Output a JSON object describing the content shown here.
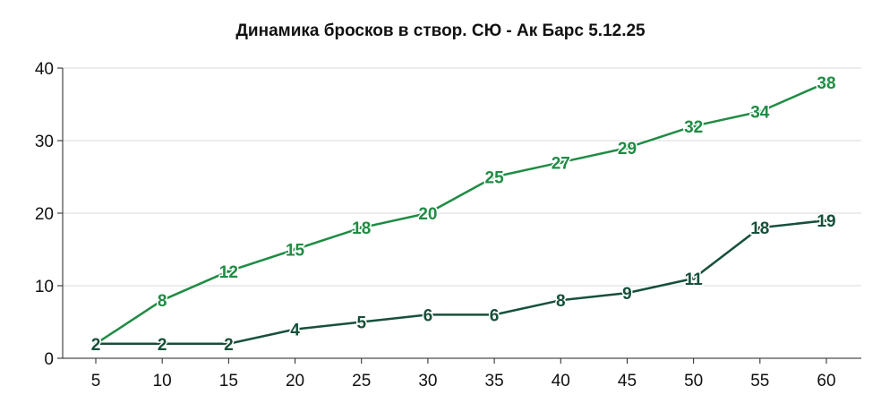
{
  "chart_data": {
    "type": "line",
    "title": "Динамика бросков в створ. СЮ - Ак Барс 5.12.25",
    "xlabel": "",
    "ylabel": "",
    "categories": [
      "5",
      "10",
      "15",
      "20",
      "25",
      "30",
      "35",
      "40",
      "45",
      "50",
      "55",
      "60"
    ],
    "x": [
      5,
      10,
      15,
      20,
      25,
      30,
      35,
      40,
      45,
      50,
      55,
      60
    ],
    "ylim": [
      0,
      40
    ],
    "yticks": [
      0,
      10,
      20,
      30,
      40
    ],
    "grid": true,
    "legend": "none",
    "series": [
      {
        "values": [
          2,
          8,
          12,
          15,
          18,
          20,
          25,
          27,
          29,
          32,
          34,
          38
        ],
        "color": "#1f8c44"
      },
      {
        "values": [
          2,
          2,
          2,
          4,
          5,
          6,
          6,
          8,
          9,
          11,
          18,
          19
        ],
        "color": "#17503a"
      }
    ]
  }
}
